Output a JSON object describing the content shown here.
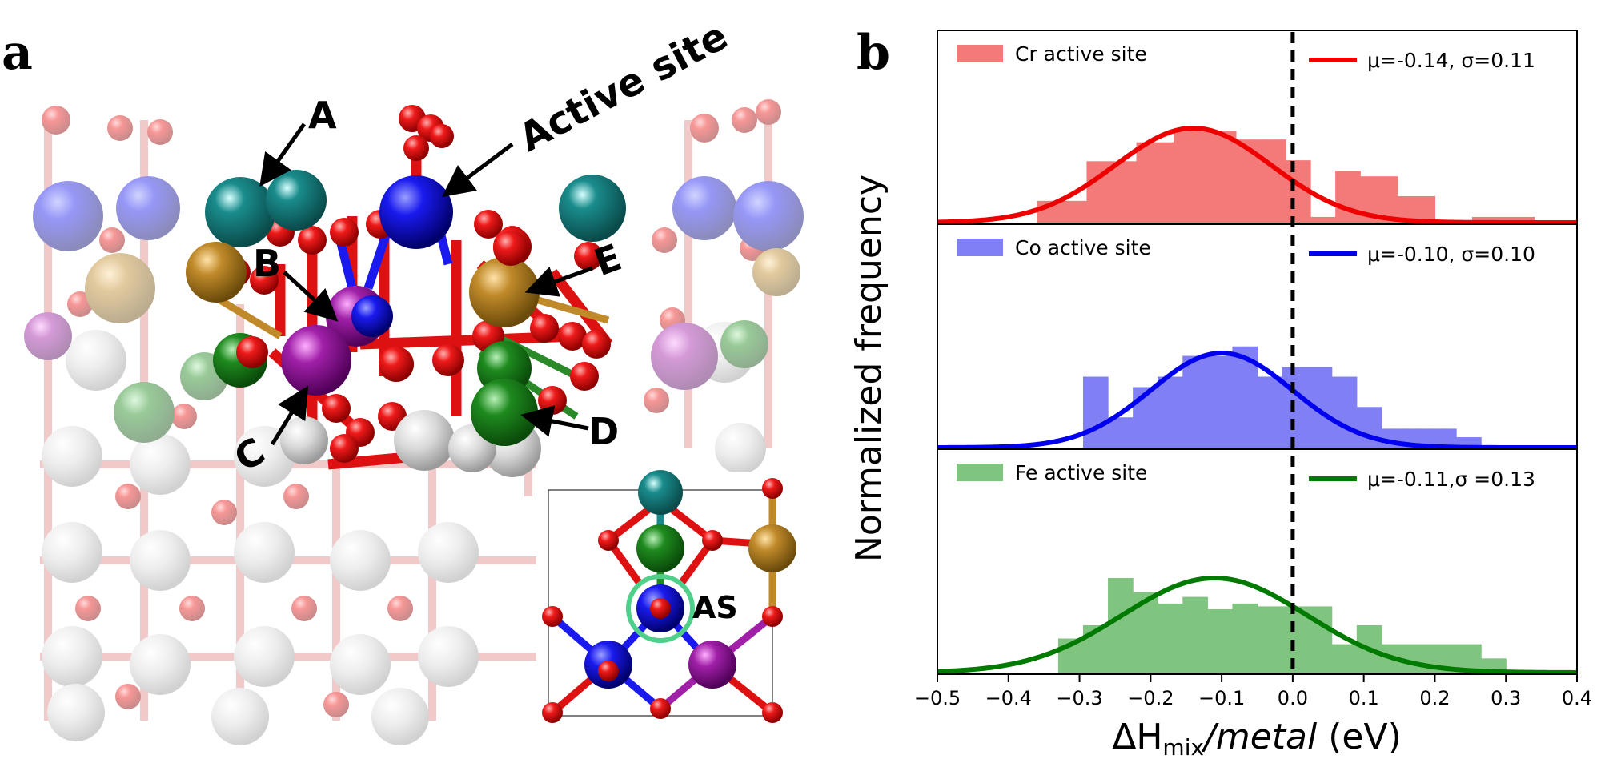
{
  "panel_a": {
    "letter": "a",
    "labels": {
      "a": "A",
      "b": "B",
      "c": "C",
      "d": "D",
      "e": "E",
      "active_site": "Active site",
      "as": "AS"
    }
  },
  "panel_b": {
    "letter": "b",
    "ylabel": "Normalized frequency",
    "xlabel_main": "ΔH",
    "xlabel_sub": "mix",
    "xlabel_italic": "/metal",
    "xlabel_unit": " (eV)"
  },
  "chart_data": {
    "type": "bar",
    "xlim": [
      -0.5,
      0.4
    ],
    "xticks": [
      "−0.5",
      "−0.4",
      "−0.3",
      "−0.2",
      "−0.1",
      "0.0",
      "0.1",
      "0.2",
      "0.3",
      "0.4"
    ],
    "vline_x": 0.0,
    "bin_width": 0.0175,
    "legend_placement": "top",
    "series": [
      {
        "name": "Cr active site",
        "fit_label": "μ=-0.14, σ=0.11",
        "mu": -0.14,
        "sigma": 0.11,
        "bar_color": "#f47a7a",
        "line_color": "#ee0000",
        "bins_start": -0.36,
        "values": [
          0.23,
          0.23,
          0.23,
          0.23,
          0.65,
          0.65,
          0.65,
          0.65,
          0.85,
          0.85,
          0.85,
          0.97,
          0.97,
          0.97,
          0.97,
          0.97,
          0.88,
          0.88,
          0.88,
          0.88,
          0.66,
          0.66,
          0.06,
          0.06,
          0.55,
          0.55,
          0.49,
          0.49,
          0.49,
          0.28,
          0.28,
          0.28,
          0,
          0,
          0,
          0.06,
          0.06,
          0.06,
          0.06,
          0.06
        ]
      },
      {
        "name": "Co active site",
        "fit_label": "μ=-0.10, σ=0.10",
        "mu": -0.1,
        "sigma": 0.1,
        "bar_color": "#8080f4",
        "line_color": "#0000ee",
        "bins_start": -0.295,
        "values": [
          0.75,
          0.75,
          0.32,
          0.32,
          0.64,
          0.64,
          0.75,
          0.75,
          0.97,
          0.97,
          0.97,
          0.97,
          1.07,
          1.07,
          0.75,
          0.75,
          0.85,
          0.85,
          0.85,
          0.85,
          0.75,
          0.75,
          0.43,
          0.43,
          0.2,
          0.2,
          0.2,
          0.2,
          0.2,
          0.2,
          0.11,
          0.11
        ]
      },
      {
        "name": "Fe active site",
        "fit_label": "μ=-0.11,σ =0.13",
        "mu": -0.11,
        "sigma": 0.13,
        "bar_color": "#7fc47f",
        "line_color": "#007a00",
        "bins_start": -0.33,
        "values": [
          0.36,
          0.36,
          0.5,
          0.5,
          1.0,
          1.0,
          0.85,
          0.85,
          0.73,
          0.73,
          0.8,
          0.8,
          0.67,
          0.67,
          0.73,
          0.73,
          0.7,
          0.7,
          0.7,
          0.7,
          0.7,
          0.7,
          0.3,
          0.3,
          0.5,
          0.5,
          0.3,
          0.3,
          0.3,
          0.3,
          0.3,
          0.3,
          0.3,
          0.3,
          0.15,
          0.15
        ]
      }
    ]
  }
}
